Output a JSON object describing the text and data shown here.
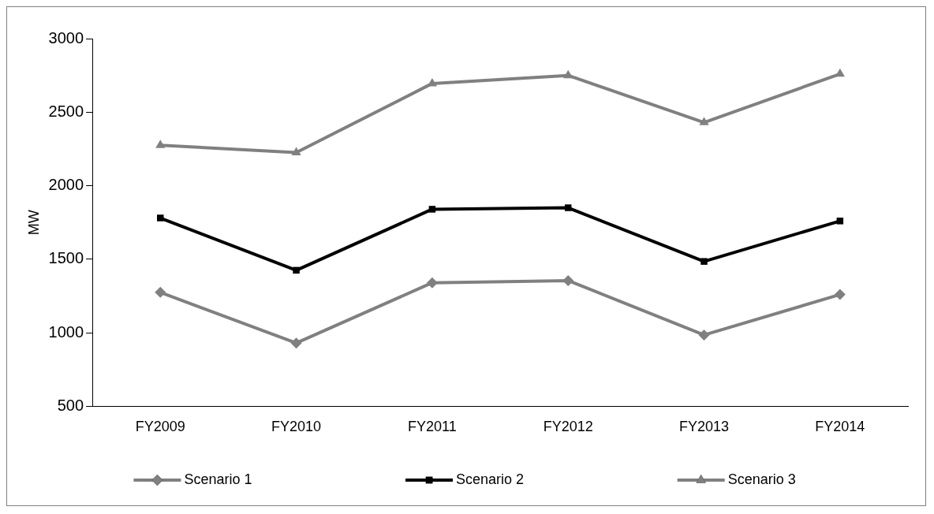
{
  "chart_data": {
    "type": "line",
    "ylabel": "MW",
    "categories": [
      "FY2009",
      "FY2010",
      "FY2011",
      "FY2012",
      "FY2013",
      "FY2014"
    ],
    "series": [
      {
        "name": "Scenario 1",
        "color": "#808080",
        "marker": "diamond",
        "values": [
          1275,
          930,
          1340,
          1355,
          985,
          1260
        ]
      },
      {
        "name": "Scenario 2",
        "color": "#000000",
        "marker": "square",
        "values": [
          1780,
          1425,
          1840,
          1850,
          1485,
          1760
        ]
      },
      {
        "name": "Scenario 3",
        "color": "#808080",
        "marker": "triangle",
        "values": [
          2275,
          2225,
          2695,
          2750,
          2430,
          2760
        ]
      }
    ],
    "ylim": [
      500,
      3000
    ],
    "yticks": [
      500,
      1000,
      1500,
      2000,
      2500,
      3000
    ],
    "grid": false,
    "legend": "bottom",
    "line_style": "solid"
  }
}
